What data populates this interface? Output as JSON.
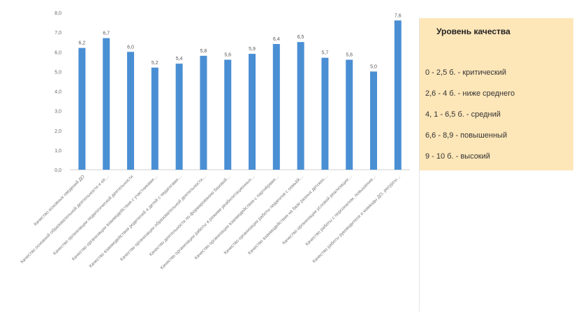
{
  "chart_data": {
    "type": "bar",
    "ylim": [
      0,
      8
    ],
    "yticks": [
      "0,0",
      "1,0",
      "2,0",
      "3,0",
      "4,0",
      "5,0",
      "6,0",
      "7,0",
      "8,0"
    ],
    "grid": false,
    "color": "#4a8fd4",
    "categories": [
      "Качество основных сведений ДО",
      "Качество основной образовательной деятельности и её…",
      "Качество организации педагогической деятельности",
      "Качество организации взаимодействия с участниками…",
      "Качество взаимодействия родителей и детей с педагогами…",
      "Качество организации образовательной деятельности…",
      "Качество деятельности по формированию базовой…",
      "Качество организации работы в режиме реабилитационных…",
      "Качество организации взаимодействия с партнёрами…",
      "Качество организации работы педагогов с семьёй…",
      "Качество взаимодействия на базе разных детских…",
      "Качество организации условий реализации…",
      "Качество работы с персоналом, повышения…",
      "Качество работы руководителя и команды ДО, ресурсы…"
    ],
    "values": [
      6.2,
      6.7,
      6.0,
      5.2,
      5.4,
      5.8,
      5.6,
      5.9,
      6.4,
      6.5,
      5.7,
      5.6,
      5.0,
      7.6
    ],
    "value_labels": [
      "6,2",
      "6,7",
      "6,0",
      "5,2",
      "5,4",
      "5,8",
      "5,6",
      "5,9",
      "6,4",
      "6,5",
      "5,7",
      "5,6",
      "5,0",
      "7,6"
    ]
  },
  "legend": {
    "title": "Уровень качества",
    "items": [
      "0 - 2,5 б. - критический",
      "2,6 - 4 б. - ниже среднего",
      "4, 1 - 6,5 б. - средний",
      "6,6 - 8,9 - повышенный",
      "9 - 10 б. - высокий"
    ]
  }
}
